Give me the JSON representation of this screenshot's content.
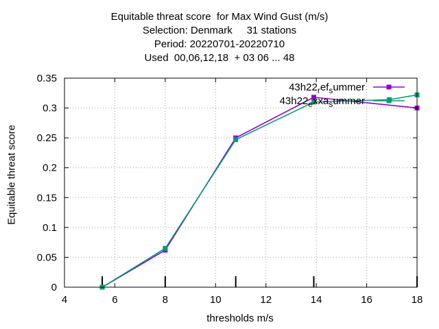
{
  "chart_data": {
    "type": "line",
    "title_lines": [
      "Equitable threat score  for Max Wind Gust (m/s)",
      "Selection: Denmark     31 stations",
      "Period: 20220701-20220710",
      "Used  00,06,12,18  + 03 06 ... 48"
    ],
    "xlabel": "thresholds m/s",
    "ylabel": "Equitable threat score",
    "xlim": [
      4,
      18
    ],
    "ylim": [
      0,
      0.35
    ],
    "xticks": [
      "4",
      "6",
      "8",
      "10",
      "12",
      "14",
      "16",
      "18"
    ],
    "yticks": [
      "0",
      "0.05",
      "0.1",
      "0.15",
      "0.2",
      "0.25",
      "0.3",
      "0.35"
    ],
    "grid": true,
    "legend_position": "top-right",
    "threshold_markers": [
      5.5,
      8,
      10.8,
      13.9,
      18
    ],
    "series": [
      {
        "name": "43h22_ref_summer",
        "legend_parts": [
          [
            "43h22",
            ""
          ],
          [
            "r",
            "sub"
          ],
          [
            "ef",
            ""
          ],
          [
            "s",
            "sub"
          ],
          [
            "ummer",
            ""
          ]
        ],
        "color": "#9400D3",
        "marker": "square",
        "x": [
          5.5,
          8,
          10.8,
          13.9,
          18
        ],
        "y": [
          0.0,
          0.062,
          0.25,
          0.318,
          0.3
        ]
      },
      {
        "name": "43h22_exxa_summer",
        "legend_parts": [
          [
            "43h22",
            ""
          ],
          [
            "e",
            "sub"
          ],
          [
            "xxa",
            ""
          ],
          [
            "s",
            "sub"
          ],
          [
            "ummer",
            ""
          ]
        ],
        "color": "#009E73",
        "marker": "square",
        "x": [
          5.5,
          8,
          10.8,
          13.9,
          16.9,
          18
        ],
        "y": [
          0.0,
          0.065,
          0.247,
          0.31,
          0.314,
          0.322
        ]
      }
    ]
  }
}
